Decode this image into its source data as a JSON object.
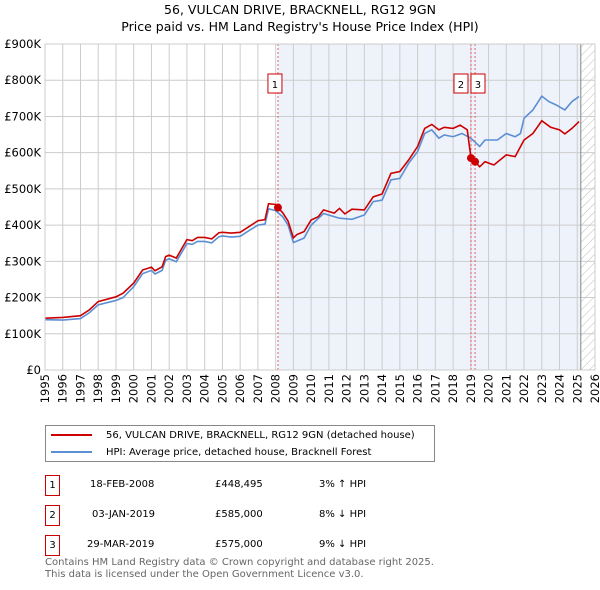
{
  "title": "56, VULCAN DRIVE, BRACKNELL, RG12 9GN",
  "subtitle": "Price paid vs. HM Land Registry's House Price Index (HPI)",
  "colors": {
    "price": "#cc0000",
    "hpi": "#5b8fd4",
    "shade": "#eef2fb",
    "grid": "#cccccc"
  },
  "chart_data": {
    "type": "line",
    "title": "56, VULCAN DRIVE, BRACKNELL, RG12 9GN - Price paid vs. HM Land Registry's House Price Index (HPI)",
    "xlabel": "",
    "ylabel": "",
    "xlim": [
      1995,
      2026
    ],
    "ylim": [
      0,
      900000
    ],
    "x_ticks": [
      "1995",
      "1996",
      "1997",
      "1998",
      "1999",
      "2000",
      "2001",
      "2002",
      "2003",
      "2004",
      "2005",
      "2006",
      "2007",
      "2008",
      "2009",
      "2010",
      "2011",
      "2012",
      "2013",
      "2014",
      "2015",
      "2016",
      "2017",
      "2018",
      "2019",
      "2020",
      "2021",
      "2022",
      "2023",
      "2024",
      "2025",
      "2026"
    ],
    "y_ticks": [
      {
        "v": 0,
        "label": "£0"
      },
      {
        "v": 100000,
        "label": "£100K"
      },
      {
        "v": 200000,
        "label": "£200K"
      },
      {
        "v": 300000,
        "label": "£300K"
      },
      {
        "v": 400000,
        "label": "£400K"
      },
      {
        "v": 500000,
        "label": "£500K"
      },
      {
        "v": 600000,
        "label": "£600K"
      },
      {
        "v": 700000,
        "label": "£700K"
      },
      {
        "v": 800000,
        "label": "£800K"
      },
      {
        "v": 900000,
        "label": "£900K"
      }
    ],
    "grid": true,
    "shaded_range": [
      2008.13,
      2025.2
    ],
    "forecast_hatch_from": 2025.2,
    "series": [
      {
        "name": "56, VULCAN DRIVE, BRACKNELL, RG12 9GN (detached house)",
        "x": [
          1995,
          1996,
          1997,
          1997.5,
          1998,
          1999,
          1999.4,
          2000,
          2000.5,
          2001,
          2001.2,
          2001.6,
          2001.8,
          2002,
          2002.4,
          2003,
          2003.3,
          2003.6,
          2004,
          2004.4,
          2004.8,
          2005,
          2005.5,
          2006,
          2006.5,
          2007,
          2007.4,
          2007.6,
          2008,
          2008.13,
          2008.4,
          2008.7,
          2009,
          2009.2,
          2009.6,
          2010,
          2010.4,
          2010.7,
          2011.3,
          2011.6,
          2011.9,
          2012.3,
          2013,
          2013.5,
          2014,
          2014.5,
          2015,
          2015.5,
          2016,
          2016.4,
          2016.8,
          2017.2,
          2017.5,
          2018,
          2018.4,
          2018.8,
          2019.01,
          2019.24,
          2019.5,
          2019.8,
          2020.3,
          2021,
          2021.5,
          2022,
          2022.5,
          2023,
          2023.5,
          2024,
          2024.3,
          2024.7,
          2025.1
        ],
        "y": [
          143000,
          145000,
          150000,
          166000,
          189000,
          202000,
          212000,
          240000,
          276000,
          284000,
          274000,
          285000,
          313000,
          317000,
          309000,
          360000,
          357000,
          366000,
          366000,
          362000,
          379000,
          380000,
          378000,
          380000,
          396000,
          412000,
          415000,
          459000,
          457000,
          448495,
          434000,
          411000,
          365000,
          374000,
          382000,
          414000,
          423000,
          442000,
          433000,
          446000,
          431000,
          444000,
          442000,
          478000,
          486000,
          543000,
          548000,
          580000,
          617000,
          667000,
          678000,
          663000,
          670000,
          667000,
          676000,
          663000,
          585000,
          575000,
          561000,
          575000,
          566000,
          594000,
          589000,
          635000,
          653000,
          688000,
          670000,
          663000,
          652000,
          667000,
          686000
        ]
      },
      {
        "name": "HPI: Average price, detached house, Bracknell Forest",
        "x": [
          1995,
          1996,
          1997,
          1997.5,
          1998,
          1999,
          1999.4,
          2000,
          2000.5,
          2001,
          2001.2,
          2001.6,
          2001.8,
          2002,
          2002.4,
          2003,
          2003.3,
          2003.6,
          2004,
          2004.4,
          2004.8,
          2005,
          2005.5,
          2006,
          2006.5,
          2007,
          2007.4,
          2007.6,
          2008,
          2008.4,
          2008.7,
          2009,
          2009.6,
          2010,
          2010.7,
          2011.6,
          2012.3,
          2013,
          2013.5,
          2014,
          2014.5,
          2015,
          2015.5,
          2016,
          2016.4,
          2016.8,
          2017.2,
          2017.5,
          2018,
          2018.5,
          2019,
          2019.5,
          2019.8,
          2020.5,
          2021,
          2021.5,
          2021.8,
          2022,
          2022.5,
          2023,
          2023.4,
          2023.8,
          2024.3,
          2024.7,
          2025.1
        ],
        "y": [
          139000,
          138000,
          142000,
          158000,
          180000,
          192000,
          200000,
          230000,
          266000,
          275000,
          265000,
          275000,
          303000,
          307000,
          299000,
          349000,
          347000,
          355000,
          355000,
          351000,
          368000,
          370000,
          367000,
          369000,
          385000,
          400000,
          403000,
          445000,
          440000,
          423000,
          400000,
          352000,
          364000,
          400000,
          432000,
          419000,
          416000,
          428000,
          465000,
          469000,
          525000,
          529000,
          571000,
          603000,
          653000,
          663000,
          640000,
          649000,
          644000,
          653000,
          640000,
          617000,
          635000,
          635000,
          653000,
          644000,
          653000,
          695000,
          718000,
          756000,
          741000,
          732000,
          718000,
          741000,
          755000
        ]
      }
    ],
    "annotations": [
      {
        "label": "1",
        "x": 2008.13
      },
      {
        "label": "2",
        "x": 2019.01
      },
      {
        "label": "3",
        "x": 2019.24
      }
    ],
    "sales_points": [
      {
        "x": 2008.13,
        "y": 448495
      },
      {
        "x": 2019.01,
        "y": 585000
      },
      {
        "x": 2019.24,
        "y": 575000
      }
    ]
  },
  "legend": [
    {
      "label": "56, VULCAN DRIVE, BRACKNELL, RG12 9GN (detached house)"
    },
    {
      "label": "HPI: Average price, detached house, Bracknell Forest"
    }
  ],
  "transactions": [
    {
      "num": "1",
      "date": "18-FEB-2008",
      "price": "£448,495",
      "hpi": "3% ↑ HPI"
    },
    {
      "num": "2",
      "date": "03-JAN-2019",
      "price": "£585,000",
      "hpi": "8% ↓ HPI"
    },
    {
      "num": "3",
      "date": "29-MAR-2019",
      "price": "£575,000",
      "hpi": "9% ↓ HPI"
    }
  ],
  "footer": {
    "line1": "Contains HM Land Registry data © Crown copyright and database right 2025.",
    "line2": "This data is licensed under the Open Government Licence v3.0."
  }
}
